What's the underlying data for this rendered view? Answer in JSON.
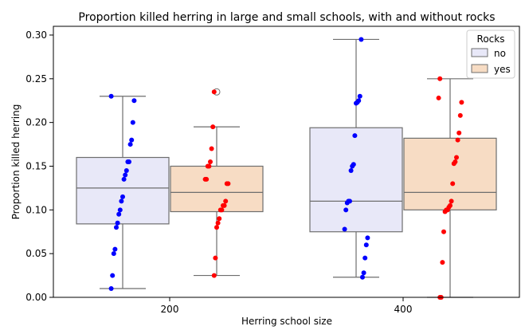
{
  "chart_data": {
    "type": "box",
    "title": "Proportion killed herring in large and small schools, with and without rocks",
    "xlabel": "Herring school size",
    "ylabel": "Proportion killed herring",
    "categories": [
      "200",
      "400"
    ],
    "ylim": [
      0,
      0.31
    ],
    "yticks": [
      0.0,
      0.05,
      0.1,
      0.15,
      0.2,
      0.25,
      0.3
    ],
    "ytick_labels": [
      "0.00",
      "0.05",
      "0.10",
      "0.15",
      "0.20",
      "0.25",
      "0.30"
    ],
    "grid": false,
    "legend": {
      "title": "Rocks",
      "position": "top-right"
    },
    "series": [
      {
        "name": "no",
        "box_color": "#e8e8f8",
        "point_color": "#0000ff",
        "boxes": [
          {
            "category": "200",
            "q1": 0.084,
            "median": 0.125,
            "q3": 0.16,
            "whisker_low": 0.01,
            "whisker_high": 0.23,
            "outliers": [],
            "points": [
              0.23,
              0.225,
              0.2,
              0.18,
              0.175,
              0.155,
              0.155,
              0.145,
              0.14,
              0.135,
              0.115,
              0.11,
              0.1,
              0.095,
              0.085,
              0.08,
              0.055,
              0.05,
              0.025,
              0.01
            ]
          },
          {
            "category": "400",
            "q1": 0.075,
            "median": 0.11,
            "q3": 0.194,
            "whisker_low": 0.023,
            "whisker_high": 0.295,
            "outliers": [],
            "points": [
              0.295,
              0.23,
              0.225,
              0.223,
              0.222,
              0.185,
              0.152,
              0.15,
              0.145,
              0.11,
              0.11,
              0.108,
              0.1,
              0.078,
              0.068,
              0.06,
              0.045,
              0.028,
              0.023
            ]
          }
        ]
      },
      {
        "name": "yes",
        "box_color": "#f7dcc4",
        "point_color": "#ff0000",
        "boxes": [
          {
            "category": "200",
            "q1": 0.098,
            "median": 0.12,
            "q3": 0.15,
            "whisker_low": 0.025,
            "whisker_high": 0.195,
            "outliers": [
              0.235
            ],
            "points": [
              0.235,
              0.195,
              0.17,
              0.155,
              0.15,
              0.15,
              0.135,
              0.135,
              0.13,
              0.13,
              0.11,
              0.105,
              0.105,
              0.1,
              0.1,
              0.09,
              0.085,
              0.08,
              0.045,
              0.025
            ]
          },
          {
            "category": "400",
            "q1": 0.1,
            "median": 0.12,
            "q3": 0.182,
            "whisker_low": 0.0,
            "whisker_high": 0.25,
            "outliers": [],
            "points": [
              0.25,
              0.228,
              0.223,
              0.208,
              0.188,
              0.18,
              0.16,
              0.155,
              0.153,
              0.13,
              0.11,
              0.105,
              0.103,
              0.1,
              0.1,
              0.098,
              0.075,
              0.04,
              0.0,
              0.0
            ]
          }
        ]
      }
    ]
  }
}
